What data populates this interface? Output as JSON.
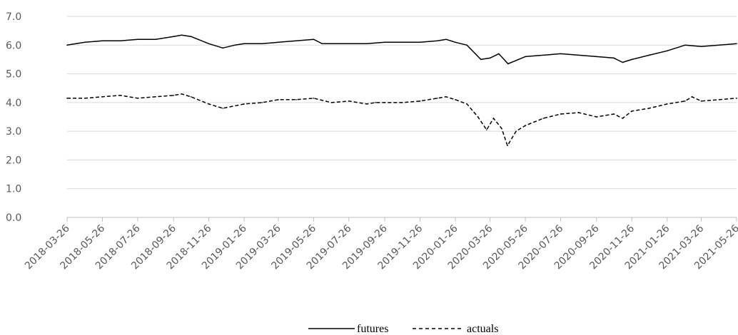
{
  "chart_data": {
    "type": "line",
    "title": "",
    "xlabel": "",
    "ylabel": "",
    "ylim": [
      0,
      7
    ],
    "yticks": [
      "0.0",
      "1.0",
      "2.0",
      "3.0",
      "4.0",
      "5.0",
      "6.0",
      "7.0"
    ],
    "grid": "horizontal",
    "legend_position": "bottom",
    "x_tick_labels": [
      "2018-03-26",
      "2018-05-26",
      "2018-07-26",
      "2018-09-26",
      "2018-11-26",
      "2019-01-26",
      "2019-03-26",
      "2019-05-26",
      "2019-07-26",
      "2019-09-26",
      "2019-11-26",
      "2020-01-26",
      "2020-03-26",
      "2020-05-26",
      "2020-07-26",
      "2020-09-26",
      "2020-11-26",
      "2021-01-26",
      "2021-03-26",
      "2021-05-26"
    ],
    "series": [
      {
        "name": "futures",
        "style": "solid",
        "color": "#000000",
        "points": [
          [
            "2018-03-26",
            6.0
          ],
          [
            "2018-04-26",
            6.1
          ],
          [
            "2018-05-26",
            6.15
          ],
          [
            "2018-06-26",
            6.15
          ],
          [
            "2018-07-26",
            6.2
          ],
          [
            "2018-08-26",
            6.2
          ],
          [
            "2018-09-26",
            6.3
          ],
          [
            "2018-10-10",
            6.35
          ],
          [
            "2018-10-26",
            6.3
          ],
          [
            "2018-11-26",
            6.05
          ],
          [
            "2018-12-20",
            5.9
          ],
          [
            "2019-01-10",
            6.0
          ],
          [
            "2019-01-26",
            6.05
          ],
          [
            "2019-02-26",
            6.05
          ],
          [
            "2019-03-26",
            6.1
          ],
          [
            "2019-04-26",
            6.15
          ],
          [
            "2019-05-26",
            6.2
          ],
          [
            "2019-06-10",
            6.05
          ],
          [
            "2019-06-26",
            6.05
          ],
          [
            "2019-07-26",
            6.05
          ],
          [
            "2019-08-26",
            6.05
          ],
          [
            "2019-09-26",
            6.1
          ],
          [
            "2019-10-26",
            6.1
          ],
          [
            "2019-11-26",
            6.1
          ],
          [
            "2019-12-26",
            6.15
          ],
          [
            "2020-01-10",
            6.2
          ],
          [
            "2020-01-26",
            6.1
          ],
          [
            "2020-02-15",
            6.0
          ],
          [
            "2020-03-10",
            5.5
          ],
          [
            "2020-03-26",
            5.55
          ],
          [
            "2020-04-10",
            5.7
          ],
          [
            "2020-04-26",
            5.35
          ],
          [
            "2020-05-26",
            5.6
          ],
          [
            "2020-06-26",
            5.65
          ],
          [
            "2020-07-26",
            5.7
          ],
          [
            "2020-08-26",
            5.65
          ],
          [
            "2020-09-26",
            5.6
          ],
          [
            "2020-10-26",
            5.55
          ],
          [
            "2020-11-10",
            5.4
          ],
          [
            "2020-11-26",
            5.5
          ],
          [
            "2020-12-26",
            5.65
          ],
          [
            "2021-01-26",
            5.8
          ],
          [
            "2021-02-26",
            6.0
          ],
          [
            "2021-03-26",
            5.95
          ],
          [
            "2021-04-26",
            6.0
          ],
          [
            "2021-05-26",
            6.05
          ]
        ]
      },
      {
        "name": "actuals",
        "style": "dashed",
        "color": "#000000",
        "points": [
          [
            "2018-03-26",
            4.15
          ],
          [
            "2018-04-26",
            4.15
          ],
          [
            "2018-05-26",
            4.2
          ],
          [
            "2018-06-26",
            4.25
          ],
          [
            "2018-07-26",
            4.15
          ],
          [
            "2018-08-26",
            4.2
          ],
          [
            "2018-09-26",
            4.25
          ],
          [
            "2018-10-10",
            4.3
          ],
          [
            "2018-10-26",
            4.2
          ],
          [
            "2018-11-26",
            3.95
          ],
          [
            "2018-12-20",
            3.8
          ],
          [
            "2019-01-26",
            3.95
          ],
          [
            "2019-02-26",
            4.0
          ],
          [
            "2019-03-26",
            4.1
          ],
          [
            "2019-04-26",
            4.1
          ],
          [
            "2019-05-26",
            4.15
          ],
          [
            "2019-06-26",
            4.0
          ],
          [
            "2019-07-26",
            4.05
          ],
          [
            "2019-08-26",
            3.95
          ],
          [
            "2019-09-10",
            4.0
          ],
          [
            "2019-09-26",
            4.0
          ],
          [
            "2019-10-26",
            4.0
          ],
          [
            "2019-11-26",
            4.05
          ],
          [
            "2019-12-26",
            4.15
          ],
          [
            "2020-01-10",
            4.2
          ],
          [
            "2020-01-26",
            4.1
          ],
          [
            "2020-02-15",
            3.95
          ],
          [
            "2020-03-05",
            3.5
          ],
          [
            "2020-03-20",
            3.05
          ],
          [
            "2020-04-01",
            3.45
          ],
          [
            "2020-04-15",
            3.1
          ],
          [
            "2020-04-25",
            2.5
          ],
          [
            "2020-05-10",
            3.0
          ],
          [
            "2020-05-26",
            3.2
          ],
          [
            "2020-06-26",
            3.45
          ],
          [
            "2020-07-26",
            3.6
          ],
          [
            "2020-08-26",
            3.65
          ],
          [
            "2020-09-26",
            3.5
          ],
          [
            "2020-10-26",
            3.6
          ],
          [
            "2020-11-10",
            3.45
          ],
          [
            "2020-11-26",
            3.7
          ],
          [
            "2020-12-26",
            3.8
          ],
          [
            "2021-01-26",
            3.95
          ],
          [
            "2021-02-26",
            4.05
          ],
          [
            "2021-03-10",
            4.2
          ],
          [
            "2021-03-26",
            4.05
          ],
          [
            "2021-04-26",
            4.1
          ],
          [
            "2021-05-26",
            4.15
          ]
        ]
      }
    ]
  }
}
